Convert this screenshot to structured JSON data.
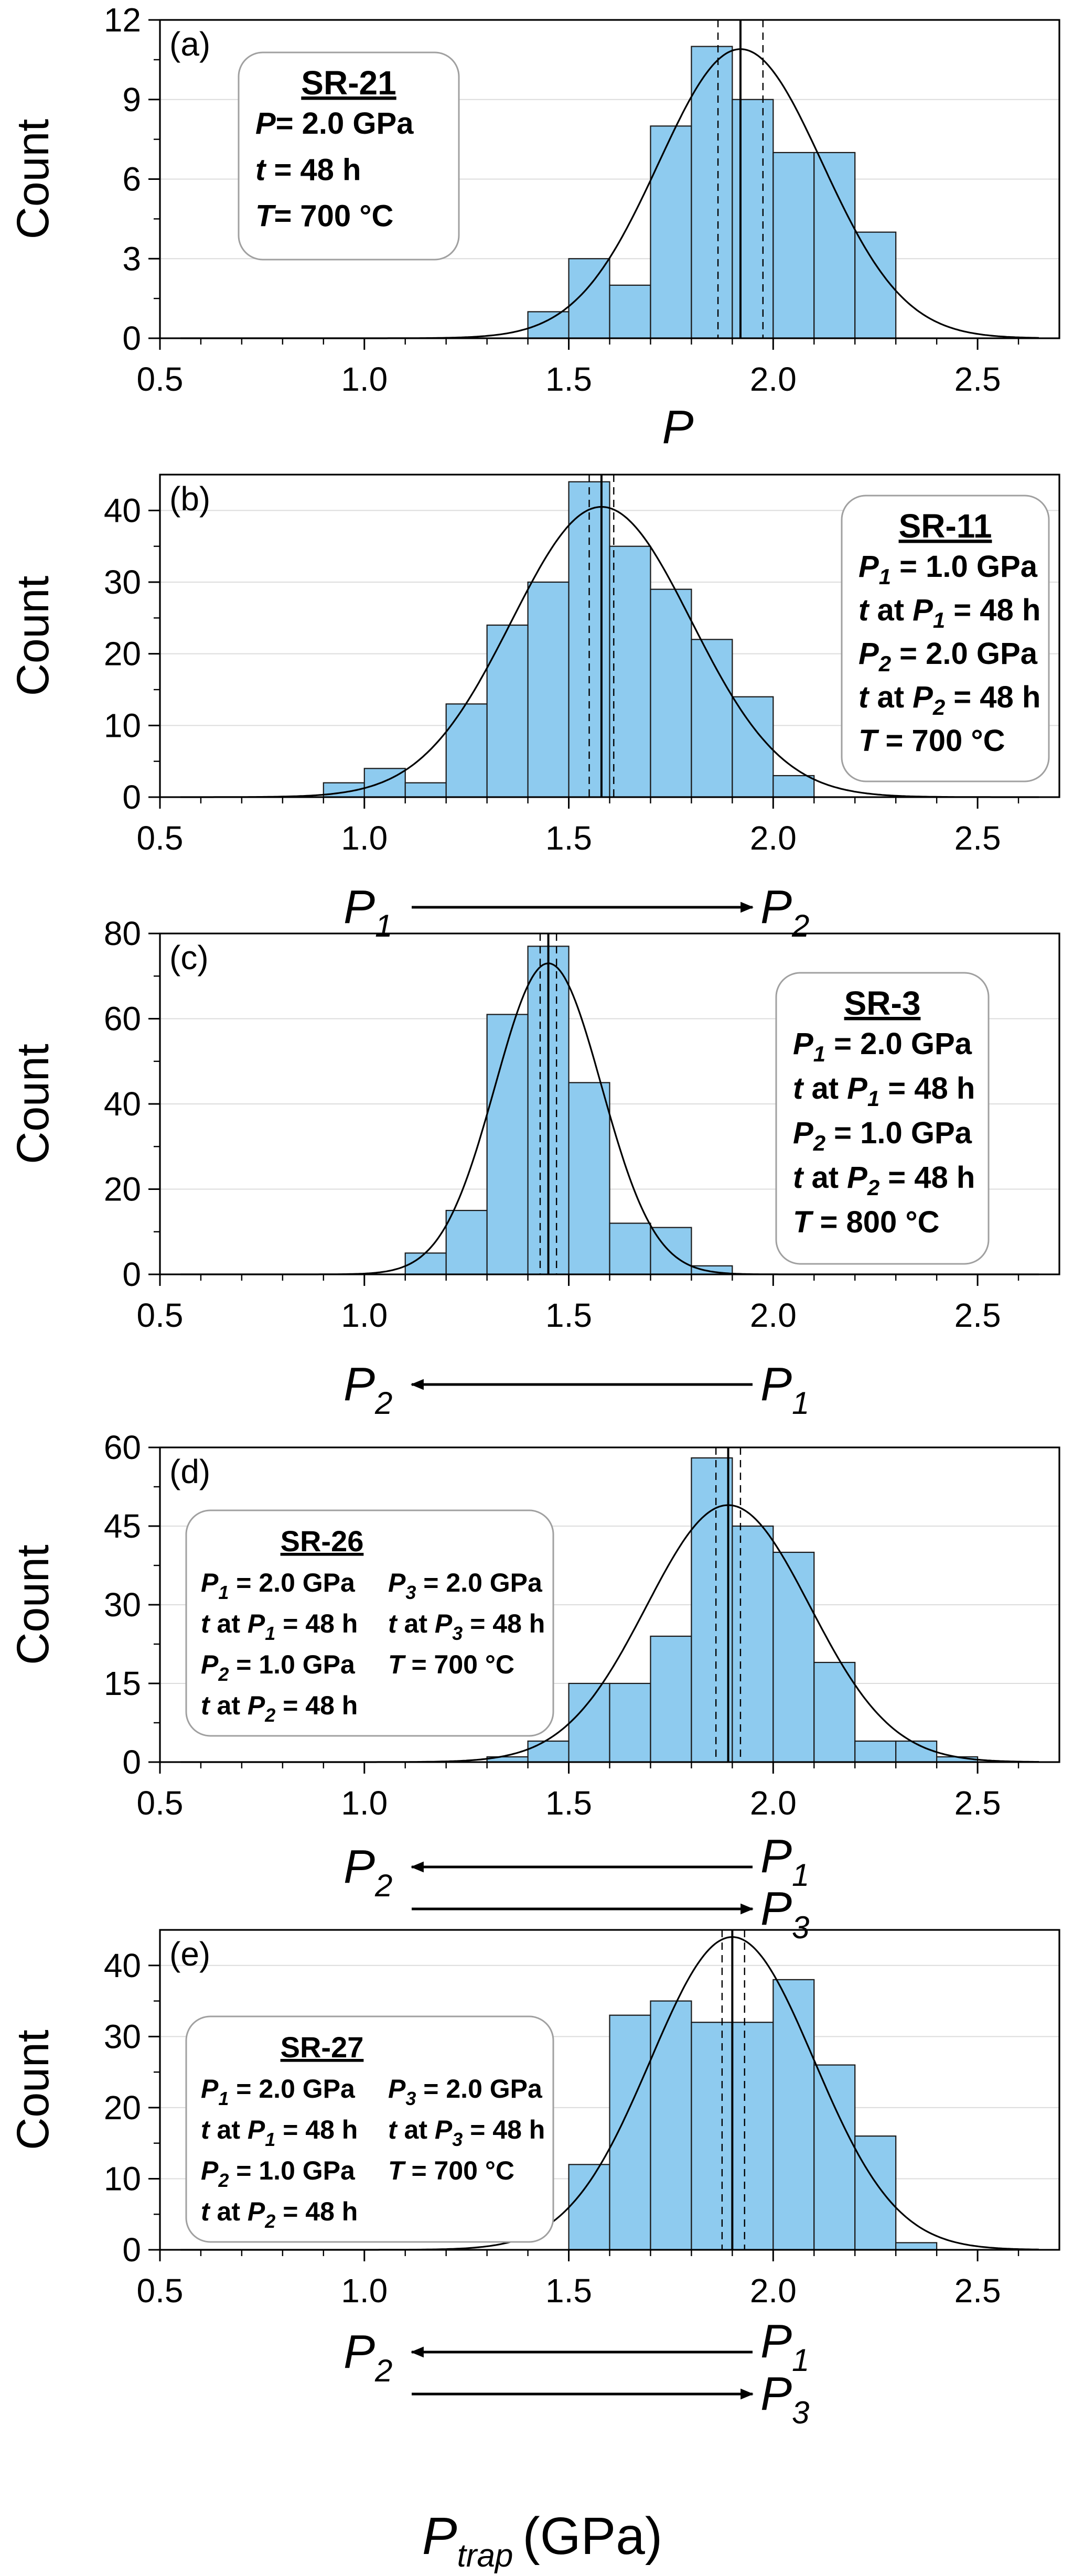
{
  "x_axis_label": {
    "main": "P",
    "sub": "trap",
    "units": "(GPa)"
  },
  "chart_data": [
    {
      "type": "bar",
      "panel": "(a)",
      "ylabel": "Count",
      "xlabel": "P",
      "xlim": [
        0.5,
        2.7
      ],
      "ylim": [
        0,
        12
      ],
      "xticks": [
        "0.5",
        "1.0",
        "1.5",
        "2.0",
        "2.5"
      ],
      "yticks": [
        "0",
        "3",
        "6",
        "9",
        "12"
      ],
      "bin_width": 0.1,
      "bins": [
        1.4,
        1.5,
        1.6,
        1.7,
        1.8,
        1.9,
        2.0,
        2.1,
        2.2
      ],
      "values": [
        1,
        3,
        2,
        8,
        11,
        9,
        7,
        7,
        4
      ],
      "fit": {
        "type": "gaussian",
        "mean": 1.92,
        "sigma": 0.2,
        "peak": 10.9
      },
      "vlines": {
        "solid": 1.92,
        "dashed": [
          1.865,
          1.975
        ]
      },
      "sample_box": {
        "title": "SR-21",
        "lines": [
          [
            "P",
            "",
            "= 2.0 GPa"
          ],
          [
            "t",
            "",
            " = 48 h"
          ],
          [
            "T",
            "",
            "= 700 °C"
          ]
        ]
      },
      "arrows": []
    },
    {
      "type": "bar",
      "panel": "(b)",
      "ylabel": "Count",
      "xlim": [
        0.5,
        2.7
      ],
      "ylim": [
        0,
        45
      ],
      "xticks": [
        "0.5",
        "1.0",
        "1.5",
        "2.0",
        "2.5"
      ],
      "yticks": [
        "0",
        "10",
        "20",
        "30",
        "40"
      ],
      "bin_width": 0.1,
      "bins": [
        0.9,
        1.0,
        1.1,
        1.2,
        1.3,
        1.4,
        1.5,
        1.6,
        1.7,
        1.8,
        1.9,
        2.0
      ],
      "values": [
        2,
        4,
        2,
        13,
        24,
        30,
        44,
        35,
        29,
        22,
        14,
        3
      ],
      "fit": {
        "type": "gaussian",
        "mean": 1.58,
        "sigma": 0.22,
        "peak": 40.5
      },
      "vlines": {
        "solid": 1.58,
        "dashed": [
          1.55,
          1.61
        ]
      },
      "sample_box": {
        "title": "SR-11",
        "lines": [
          [
            "P",
            "1",
            " = 1.0 GPa"
          ],
          [
            "t at P",
            "1",
            " = 48 h"
          ],
          [
            "P",
            "2",
            " = 2.0 GPa"
          ],
          [
            "t at P",
            "2",
            " = 48 h"
          ],
          [
            "T",
            "",
            " = 700 °C"
          ]
        ]
      },
      "arrows": [
        {
          "from": "P1",
          "to": "P2",
          "direction": "right",
          "left_label": [
            "P",
            "1"
          ],
          "right_label": [
            "P",
            "2"
          ]
        }
      ]
    },
    {
      "type": "bar",
      "panel": "(c)",
      "ylabel": "Count",
      "xlim": [
        0.5,
        2.7
      ],
      "ylim": [
        0,
        80
      ],
      "xticks": [
        "0.5",
        "1.0",
        "1.5",
        "2.0",
        "2.5"
      ],
      "yticks": [
        "0",
        "20",
        "40",
        "60",
        "80"
      ],
      "bin_width": 0.1,
      "bins": [
        1.1,
        1.2,
        1.3,
        1.4,
        1.5,
        1.6,
        1.7,
        1.8
      ],
      "values": [
        5,
        15,
        61,
        77,
        45,
        12,
        11,
        2
      ],
      "fit": {
        "type": "gaussian",
        "mean": 1.45,
        "sigma": 0.13,
        "peak": 73
      },
      "vlines": {
        "solid": 1.45,
        "dashed": [
          1.43,
          1.47
        ]
      },
      "sample_box": {
        "title": "SR-3",
        "lines": [
          [
            "P",
            "1",
            " = 2.0 GPa"
          ],
          [
            "t at P",
            "1",
            " = 48 h"
          ],
          [
            "P",
            "2",
            " = 1.0 GPa"
          ],
          [
            "t at P",
            "2",
            " = 48 h"
          ],
          [
            "T",
            "",
            " = 800 °C"
          ]
        ]
      },
      "arrows": [
        {
          "from": "P1",
          "to": "P2",
          "direction": "left",
          "left_label": [
            "P",
            "2"
          ],
          "right_label": [
            "P",
            "1"
          ]
        }
      ]
    },
    {
      "type": "bar",
      "panel": "(d)",
      "ylabel": "Count",
      "xlim": [
        0.5,
        2.7
      ],
      "ylim": [
        0,
        60
      ],
      "xticks": [
        "0.5",
        "1.0",
        "1.5",
        "2.0",
        "2.5"
      ],
      "yticks": [
        "0",
        "15",
        "30",
        "45",
        "60"
      ],
      "bin_width": 0.1,
      "bins": [
        1.3,
        1.4,
        1.5,
        1.6,
        1.7,
        1.8,
        1.9,
        2.0,
        2.1,
        2.2,
        2.3,
        2.4
      ],
      "values": [
        1,
        4,
        15,
        15,
        24,
        58,
        45,
        40,
        19,
        4,
        4,
        1
      ],
      "fit": {
        "type": "gaussian",
        "mean": 1.89,
        "sigma": 0.2,
        "peak": 49
      },
      "vlines": {
        "solid": 1.89,
        "dashed": [
          1.86,
          1.92
        ]
      },
      "sample_box": {
        "title": "SR-26",
        "col1": [
          [
            "P",
            "1",
            " = 2.0 GPa"
          ],
          [
            "t at P",
            "1",
            " = 48 h"
          ],
          [
            "P",
            "2",
            " = 1.0 GPa"
          ],
          [
            "t at P",
            "2",
            " = 48 h"
          ]
        ],
        "col2": [
          [
            "P",
            "3",
            " = 2.0 GPa"
          ],
          [
            "t at P",
            "3",
            " = 48 h"
          ],
          [
            "T",
            "",
            " = 700 °C"
          ]
        ]
      },
      "arrows": [
        {
          "from": "P1",
          "to": "P2",
          "direction": "left",
          "left_label": [
            "P",
            "2"
          ],
          "right_label": [
            "P",
            "1"
          ]
        },
        {
          "from": "P2",
          "to": "P3",
          "direction": "right",
          "left_label": null,
          "right_label": [
            "P",
            "3"
          ]
        }
      ]
    },
    {
      "type": "bar",
      "panel": "(e)",
      "ylabel": "Count",
      "xlim": [
        0.5,
        2.7
      ],
      "ylim": [
        0,
        45
      ],
      "xticks": [
        "0.5",
        "1.0",
        "1.5",
        "2.0",
        "2.5"
      ],
      "yticks": [
        "0",
        "10",
        "20",
        "30",
        "40"
      ],
      "bin_width": 0.1,
      "bins": [
        1.5,
        1.6,
        1.7,
        1.8,
        1.9,
        2.0,
        2.1,
        2.2,
        2.3
      ],
      "values": [
        12,
        33,
        35,
        32,
        32,
        38,
        26,
        16,
        1
      ],
      "fit": {
        "type": "gaussian",
        "mean": 1.9,
        "sigma": 0.2,
        "peak": 44
      },
      "vlines": {
        "solid": 1.9,
        "dashed": [
          1.875,
          1.93
        ]
      },
      "sample_box": {
        "title": "SR-27",
        "col1": [
          [
            "P",
            "1",
            " = 2.0 GPa"
          ],
          [
            "t at P",
            "1",
            " = 48 h"
          ],
          [
            "P",
            "2",
            " = 1.0 GPa"
          ],
          [
            "t at P",
            "2",
            " = 48 h"
          ]
        ],
        "col2": [
          [
            "P",
            "3",
            " = 2.0 GPa"
          ],
          [
            "t at P",
            "3",
            " = 48 h"
          ],
          [
            "T",
            "",
            " = 700 °C"
          ]
        ]
      },
      "arrows": [
        {
          "from": "P1",
          "to": "P2",
          "direction": "left",
          "left_label": [
            "P",
            "2"
          ],
          "right_label": [
            "P",
            "1"
          ]
        },
        {
          "from": "P2",
          "to": "P3",
          "direction": "right",
          "left_label": null,
          "right_label": [
            "P",
            "3"
          ]
        }
      ]
    }
  ],
  "colors": {
    "bar_fill": "#8ecbef",
    "bar_edge": "#1a1a1a",
    "axis": "#000000",
    "grid": "#dcdcdc",
    "box_edge": "#a0a0a0"
  }
}
